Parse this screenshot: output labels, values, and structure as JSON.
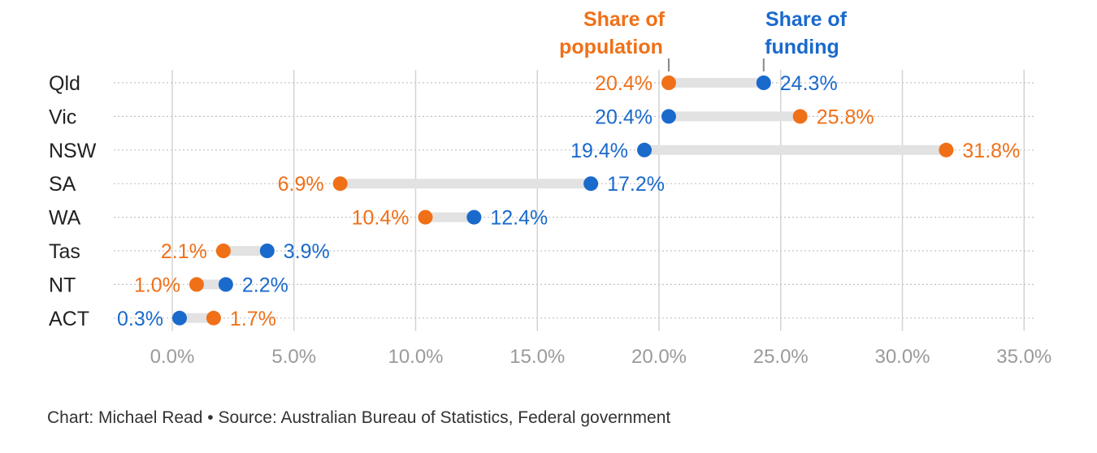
{
  "chart_data": {
    "type": "dumbbell",
    "categories": [
      "Qld",
      "Vic",
      "NSW",
      "SA",
      "WA",
      "Tas",
      "NT",
      "ACT"
    ],
    "series": [
      {
        "name": "Share of population",
        "color": "#f07018",
        "values": [
          20.4,
          25.8,
          31.8,
          6.9,
          10.4,
          2.1,
          1.0,
          1.7
        ],
        "labels": [
          "20.4%",
          "25.8%",
          "31.8%",
          "6.9%",
          "10.4%",
          "2.1%",
          "1.0%",
          "1.7%"
        ]
      },
      {
        "name": "Share of funding",
        "color": "#1a6acc",
        "values": [
          24.3,
          20.4,
          19.4,
          17.2,
          12.4,
          3.9,
          2.2,
          0.3
        ],
        "labels": [
          "24.3%",
          "20.4%",
          "19.4%",
          "17.2%",
          "12.4%",
          "3.9%",
          "2.2%",
          "0.3%"
        ]
      }
    ],
    "xlim": [
      0,
      35
    ],
    "ticks": [
      0,
      5,
      10,
      15,
      20,
      25,
      30,
      35
    ],
    "tick_labels": [
      "0.0%",
      "5.0%",
      "10.0%",
      "15.0%",
      "20.0%",
      "25.0%",
      "30.0%",
      "35.0%"
    ],
    "legend": {
      "population_lines": [
        "Share of",
        "population"
      ],
      "funding_lines": [
        "Share of",
        "funding"
      ]
    },
    "grid": true
  },
  "footer": {
    "text": "Chart: Michael Read • Source: Australian Bureau of Statistics, Federal government"
  }
}
